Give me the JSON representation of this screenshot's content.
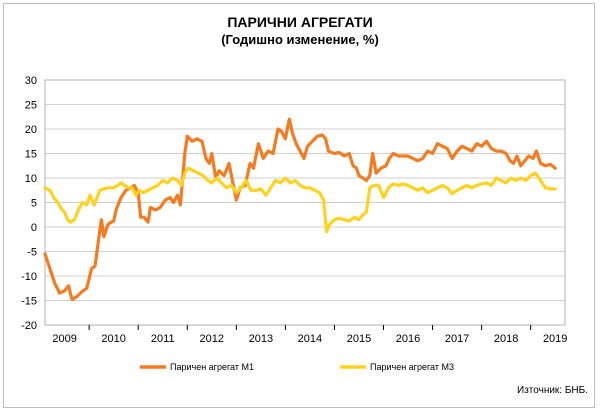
{
  "chart_data": {
    "type": "line",
    "title": "ПАРИЧНИ АГРЕГАТИ",
    "subtitle": "(Годишно изменение, %)",
    "ylim": [
      -20,
      30
    ],
    "yticks": [
      30,
      25,
      20,
      15,
      10,
      5,
      0,
      -5,
      -10,
      -15,
      -20
    ],
    "xlim": [
      2008.6,
      2019.2
    ],
    "xticks": [
      "2009",
      "2010",
      "2011",
      "2012",
      "2013",
      "2014",
      "2015",
      "2016",
      "2017",
      "2018",
      "2019"
    ],
    "grid": true,
    "legend_position": "bottom",
    "series": [
      {
        "name": "Паричен агрегат М1",
        "color": "#f47b20",
        "points": [
          [
            2008.6,
            -5.5
          ],
          [
            2008.7,
            -8.5
          ],
          [
            2008.8,
            -11.5
          ],
          [
            2008.9,
            -13.5
          ],
          [
            2009.0,
            -13.0
          ],
          [
            2009.08,
            -12.0
          ],
          [
            2009.15,
            -14.8
          ],
          [
            2009.25,
            -14.2
          ],
          [
            2009.35,
            -13.2
          ],
          [
            2009.45,
            -12.5
          ],
          [
            2009.55,
            -8.5
          ],
          [
            2009.62,
            -8.0
          ],
          [
            2009.7,
            -2.0
          ],
          [
            2009.75,
            1.5
          ],
          [
            2009.8,
            -2.0
          ],
          [
            2009.88,
            0.5
          ],
          [
            2009.95,
            1.0
          ],
          [
            2010.0,
            1.2
          ],
          [
            2010.05,
            3.5
          ],
          [
            2010.15,
            6.0
          ],
          [
            2010.25,
            7.5
          ],
          [
            2010.35,
            8.0
          ],
          [
            2010.42,
            8.5
          ],
          [
            2010.5,
            7.0
          ],
          [
            2010.55,
            2.0
          ],
          [
            2010.62,
            2.0
          ],
          [
            2010.7,
            1.0
          ],
          [
            2010.75,
            4.0
          ],
          [
            2010.85,
            3.5
          ],
          [
            2010.95,
            4.0
          ],
          [
            2011.05,
            5.5
          ],
          [
            2011.15,
            6.0
          ],
          [
            2011.22,
            5.0
          ],
          [
            2011.3,
            6.5
          ],
          [
            2011.36,
            4.5
          ],
          [
            2011.45,
            15.0
          ],
          [
            2011.5,
            18.5
          ],
          [
            2011.6,
            17.5
          ],
          [
            2011.7,
            18.0
          ],
          [
            2011.8,
            17.5
          ],
          [
            2011.88,
            14.0
          ],
          [
            2011.95,
            13.0
          ],
          [
            2012.0,
            15.0
          ],
          [
            2012.08,
            10.0
          ],
          [
            2012.15,
            11.5
          ],
          [
            2012.25,
            10.5
          ],
          [
            2012.35,
            13.0
          ],
          [
            2012.42,
            9.5
          ],
          [
            2012.5,
            5.5
          ],
          [
            2012.58,
            8.0
          ],
          [
            2012.68,
            8.5
          ],
          [
            2012.78,
            13.0
          ],
          [
            2012.85,
            12.0
          ],
          [
            2012.95,
            17.0
          ],
          [
            2013.05,
            14.0
          ],
          [
            2013.15,
            15.5
          ],
          [
            2013.25,
            15.0
          ],
          [
            2013.35,
            20.0
          ],
          [
            2013.42,
            19.5
          ],
          [
            2013.5,
            18.0
          ],
          [
            2013.58,
            22.0
          ],
          [
            2013.65,
            19.0
          ],
          [
            2013.72,
            17.0
          ],
          [
            2013.8,
            15.5
          ],
          [
            2013.88,
            14.0
          ],
          [
            2013.95,
            16.5
          ],
          [
            2014.05,
            17.5
          ],
          [
            2014.15,
            18.5
          ],
          [
            2014.25,
            18.8
          ],
          [
            2014.32,
            18.0
          ],
          [
            2014.38,
            15.5
          ],
          [
            2014.5,
            15.0
          ],
          [
            2014.6,
            15.2
          ],
          [
            2014.7,
            14.5
          ],
          [
            2014.8,
            15.0
          ],
          [
            2014.88,
            12.5
          ],
          [
            2014.95,
            12.0
          ],
          [
            2015.0,
            10.5
          ],
          [
            2015.08,
            10.0
          ],
          [
            2015.15,
            9.5
          ],
          [
            2015.22,
            10.5
          ],
          [
            2015.28,
            15.0
          ],
          [
            2015.35,
            11.0
          ],
          [
            2015.45,
            12.0
          ],
          [
            2015.55,
            12.5
          ],
          [
            2015.62,
            14.0
          ],
          [
            2015.7,
            15.0
          ],
          [
            2015.8,
            14.5
          ],
          [
            2015.9,
            14.5
          ],
          [
            2016.0,
            14.5
          ],
          [
            2016.1,
            14.0
          ],
          [
            2016.2,
            13.5
          ],
          [
            2016.3,
            14.0
          ],
          [
            2016.4,
            15.5
          ],
          [
            2016.5,
            15.0
          ],
          [
            2016.6,
            17.0
          ],
          [
            2016.7,
            16.5
          ],
          [
            2016.8,
            16.0
          ],
          [
            2016.9,
            14.0
          ],
          [
            2017.0,
            15.5
          ],
          [
            2017.1,
            16.5
          ],
          [
            2017.2,
            16.0
          ],
          [
            2017.3,
            15.5
          ],
          [
            2017.4,
            17.0
          ],
          [
            2017.5,
            16.5
          ],
          [
            2017.6,
            17.5
          ],
          [
            2017.7,
            16.0
          ],
          [
            2017.8,
            15.5
          ],
          [
            2017.9,
            15.5
          ],
          [
            2018.0,
            15.0
          ],
          [
            2018.08,
            13.5
          ],
          [
            2018.15,
            13.0
          ],
          [
            2018.22,
            14.5
          ],
          [
            2018.3,
            12.5
          ],
          [
            2018.38,
            13.5
          ],
          [
            2018.46,
            14.5
          ],
          [
            2018.55,
            14.0
          ],
          [
            2018.62,
            15.5
          ],
          [
            2018.7,
            13.0
          ],
          [
            2018.8,
            12.5
          ],
          [
            2018.9,
            12.8
          ],
          [
            2019.0,
            12.0
          ]
        ]
      },
      {
        "name": "Паричен агрегат М3",
        "color": "#ffd21f",
        "points": [
          [
            2008.6,
            8.0
          ],
          [
            2008.7,
            7.5
          ],
          [
            2008.78,
            6.0
          ],
          [
            2008.86,
            5.0
          ],
          [
            2008.95,
            3.5
          ],
          [
            2009.0,
            3.0
          ],
          [
            2009.06,
            1.5
          ],
          [
            2009.12,
            1.0
          ],
          [
            2009.2,
            1.5
          ],
          [
            2009.28,
            3.5
          ],
          [
            2009.36,
            5.0
          ],
          [
            2009.45,
            4.5
          ],
          [
            2009.52,
            6.5
          ],
          [
            2009.6,
            4.5
          ],
          [
            2009.66,
            6.0
          ],
          [
            2009.72,
            7.5
          ],
          [
            2009.8,
            7.8
          ],
          [
            2009.9,
            8.0
          ],
          [
            2010.0,
            8.0
          ],
          [
            2010.08,
            8.5
          ],
          [
            2010.15,
            9.0
          ],
          [
            2010.22,
            8.5
          ],
          [
            2010.3,
            8.0
          ],
          [
            2010.38,
            8.0
          ],
          [
            2010.45,
            6.5
          ],
          [
            2010.52,
            7.5
          ],
          [
            2010.6,
            7.0
          ],
          [
            2010.7,
            7.5
          ],
          [
            2010.8,
            8.0
          ],
          [
            2010.9,
            8.5
          ],
          [
            2011.0,
            9.5
          ],
          [
            2011.1,
            9.0
          ],
          [
            2011.2,
            10.0
          ],
          [
            2011.3,
            9.5
          ],
          [
            2011.38,
            8.5
          ],
          [
            2011.45,
            11.0
          ],
          [
            2011.52,
            12.0
          ],
          [
            2011.62,
            11.5
          ],
          [
            2011.72,
            11.0
          ],
          [
            2011.82,
            10.5
          ],
          [
            2011.92,
            9.5
          ],
          [
            2012.0,
            9.0
          ],
          [
            2012.1,
            10.0
          ],
          [
            2012.2,
            9.0
          ],
          [
            2012.3,
            8.0
          ],
          [
            2012.4,
            8.5
          ],
          [
            2012.5,
            7.0
          ],
          [
            2012.6,
            8.0
          ],
          [
            2012.7,
            9.5
          ],
          [
            2012.8,
            7.5
          ],
          [
            2012.9,
            7.5
          ],
          [
            2013.0,
            7.8
          ],
          [
            2013.1,
            6.5
          ],
          [
            2013.2,
            8.0
          ],
          [
            2013.3,
            9.5
          ],
          [
            2013.4,
            9.0
          ],
          [
            2013.5,
            10.0
          ],
          [
            2013.6,
            9.0
          ],
          [
            2013.7,
            9.5
          ],
          [
            2013.8,
            8.5
          ],
          [
            2013.9,
            8.0
          ],
          [
            2014.0,
            8.0
          ],
          [
            2014.1,
            7.5
          ],
          [
            2014.2,
            7.0
          ],
          [
            2014.28,
            5.5
          ],
          [
            2014.34,
            -1.0
          ],
          [
            2014.4,
            0.5
          ],
          [
            2014.5,
            1.5
          ],
          [
            2014.6,
            1.8
          ],
          [
            2014.7,
            1.5
          ],
          [
            2014.8,
            1.2
          ],
          [
            2014.9,
            2.0
          ],
          [
            2015.0,
            1.5
          ],
          [
            2015.08,
            2.5
          ],
          [
            2015.15,
            3.0
          ],
          [
            2015.22,
            8.0
          ],
          [
            2015.3,
            8.5
          ],
          [
            2015.4,
            8.5
          ],
          [
            2015.5,
            6.0
          ],
          [
            2015.6,
            8.0
          ],
          [
            2015.7,
            8.8
          ],
          [
            2015.8,
            8.5
          ],
          [
            2015.9,
            8.8
          ],
          [
            2016.0,
            8.5
          ],
          [
            2016.1,
            8.0
          ],
          [
            2016.2,
            7.5
          ],
          [
            2016.3,
            8.0
          ],
          [
            2016.4,
            7.0
          ],
          [
            2016.5,
            7.5
          ],
          [
            2016.6,
            8.0
          ],
          [
            2016.7,
            8.5
          ],
          [
            2016.8,
            8.0
          ],
          [
            2016.9,
            6.8
          ],
          [
            2017.0,
            7.5
          ],
          [
            2017.1,
            8.0
          ],
          [
            2017.2,
            8.5
          ],
          [
            2017.3,
            8.0
          ],
          [
            2017.4,
            8.5
          ],
          [
            2017.5,
            8.8
          ],
          [
            2017.6,
            9.0
          ],
          [
            2017.7,
            8.5
          ],
          [
            2017.8,
            10.0
          ],
          [
            2017.9,
            9.5
          ],
          [
            2018.0,
            9.0
          ],
          [
            2018.1,
            10.0
          ],
          [
            2018.2,
            9.5
          ],
          [
            2018.3,
            10.0
          ],
          [
            2018.4,
            9.5
          ],
          [
            2018.5,
            10.5
          ],
          [
            2018.6,
            11.0
          ],
          [
            2018.7,
            9.5
          ],
          [
            2018.8,
            8.0
          ],
          [
            2018.9,
            7.8
          ],
          [
            2019.0,
            7.8
          ]
        ]
      }
    ]
  },
  "source": "Източник: БНБ."
}
